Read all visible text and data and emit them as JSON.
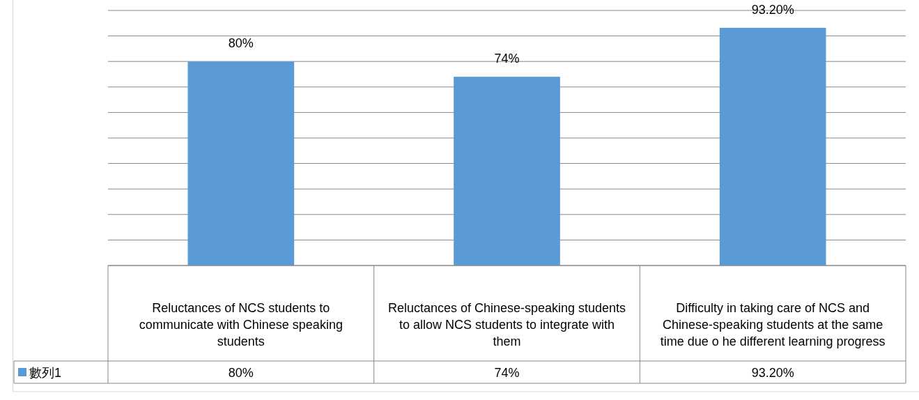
{
  "chart_data": {
    "type": "bar",
    "categories": [
      "Reluctances of NCS students to communicate with Chinese speaking students",
      "Reluctances of Chinese-speaking students to allow NCS students to integrate with them",
      "Difficulty in taking care of NCS and Chinese-speaking students at the same time due o he different learning progress"
    ],
    "series": [
      {
        "name": "數列1",
        "color": "#5b9bd5",
        "values": [
          80,
          74,
          93.2
        ],
        "value_labels": [
          "80%",
          "74%",
          "93.20%"
        ]
      }
    ],
    "ylim": [
      0,
      100
    ],
    "yticks": [
      {
        "value": 0,
        "label": null
      },
      {
        "value": 10,
        "label": null
      },
      {
        "value": 20,
        "label": null
      },
      {
        "value": 30,
        "label": null
      },
      {
        "value": 40,
        "label": null
      },
      {
        "value": 50,
        "label": null
      },
      {
        "value": 60,
        "label": null
      },
      {
        "value": 70,
        "label": null
      },
      {
        "value": 80,
        "label": null
      },
      {
        "value": 90,
        "label": null
      },
      {
        "value": 100,
        "label": null
      }
    ],
    "grid": "y",
    "legend": "bottom"
  }
}
